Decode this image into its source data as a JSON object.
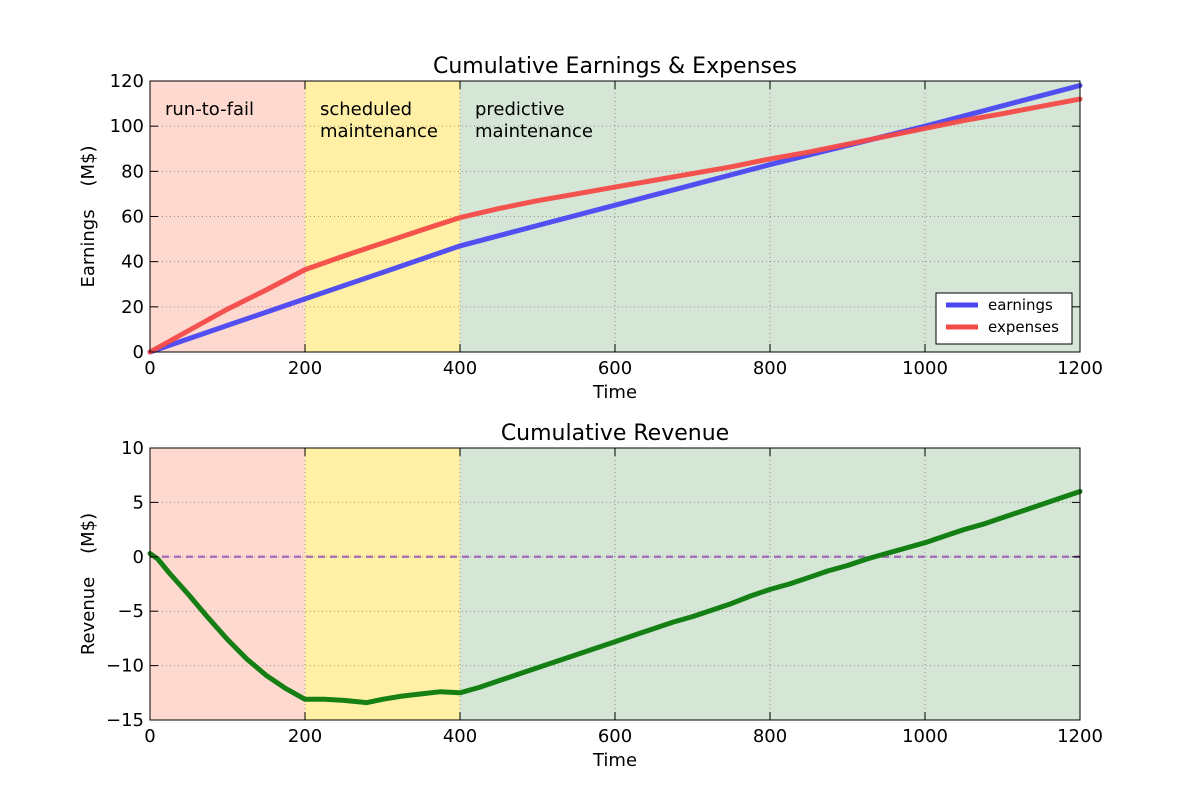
{
  "chart_data": [
    {
      "type": "line",
      "title": "Cumulative Earnings & Expenses",
      "xlabel": "Time",
      "ylabel": "Earnings    (M$)",
      "xlim": [
        0,
        1200
      ],
      "ylim": [
        0,
        120
      ],
      "xticks": [
        0,
        200,
        400,
        600,
        800,
        1000,
        1200
      ],
      "yticks": [
        0,
        20,
        40,
        60,
        80,
        100,
        120
      ],
      "grid": true,
      "legend": "lower-right",
      "regions": [
        {
          "label": "run-to-fail",
          "x0": 0,
          "x1": 200,
          "color": "#fdd9cf"
        },
        {
          "label": "scheduled\nmaintenance",
          "x0": 200,
          "x1": 400,
          "color": "#fff0a5"
        },
        {
          "label": "predictive\nmaintenance",
          "x0": 400,
          "x1": 1200,
          "color": "#d5e6d6"
        }
      ],
      "series": [
        {
          "name": "earnings",
          "color": "#4a47f3",
          "x": [
            0,
            100,
            200,
            300,
            400,
            500,
            600,
            700,
            800,
            900,
            1000,
            1100,
            1200
          ],
          "y": [
            0,
            11.8,
            23.5,
            35.2,
            47,
            56,
            65,
            74,
            83,
            91.5,
            100,
            109,
            118
          ]
        },
        {
          "name": "expenses",
          "color": "#f44a47",
          "x": [
            0,
            50,
            100,
            150,
            200,
            250,
            300,
            350,
            400,
            450,
            500,
            550,
            600,
            650,
            700,
            750,
            800,
            850,
            900,
            950,
            1000,
            1050,
            1100,
            1150,
            1200
          ],
          "y": [
            0,
            9.5,
            19,
            27.5,
            36.5,
            42.5,
            48.2,
            54,
            59.5,
            63.5,
            67,
            70,
            73,
            76,
            79,
            82,
            85.5,
            88.5,
            92,
            95.5,
            99,
            102.5,
            105.5,
            108.8,
            112
          ]
        }
      ]
    },
    {
      "type": "line",
      "title": "Cumulative Revenue",
      "xlabel": "Time",
      "ylabel": "Revenue    (M$)",
      "xlim": [
        0,
        1200
      ],
      "ylim": [
        -15,
        10
      ],
      "xticks": [
        0,
        200,
        400,
        600,
        800,
        1000,
        1200
      ],
      "yticks": [
        -15,
        -10,
        -5,
        0,
        5,
        10
      ],
      "grid": true,
      "reference_line": {
        "y": 0,
        "color": "#9b59b6",
        "style": "dashed"
      },
      "regions": [
        {
          "x0": 0,
          "x1": 200,
          "color": "#fdd9cf"
        },
        {
          "x0": 200,
          "x1": 400,
          "color": "#fff0a5"
        },
        {
          "x0": 400,
          "x1": 1200,
          "color": "#d5e6d6"
        }
      ],
      "series": [
        {
          "color": "#0a7a0a",
          "x": [
            0,
            10,
            25,
            50,
            75,
            100,
            125,
            150,
            175,
            200,
            225,
            250,
            280,
            300,
            325,
            350,
            375,
            400,
            425,
            450,
            475,
            500,
            525,
            550,
            575,
            600,
            625,
            650,
            675,
            700,
            725,
            750,
            775,
            800,
            825,
            850,
            875,
            900,
            925,
            950,
            975,
            1000,
            1025,
            1050,
            1075,
            1100,
            1125,
            1150,
            1175,
            1200
          ],
          "y": [
            0.3,
            -0.2,
            -1.5,
            -3.5,
            -5.6,
            -7.6,
            -9.4,
            -10.9,
            -12.1,
            -13.1,
            -13.1,
            -13.2,
            -13.4,
            -13.1,
            -12.8,
            -12.6,
            -12.4,
            -12.5,
            -12.0,
            -11.4,
            -10.8,
            -10.2,
            -9.6,
            -9.0,
            -8.4,
            -7.8,
            -7.2,
            -6.6,
            -6.0,
            -5.5,
            -4.9,
            -4.3,
            -3.6,
            -3.0,
            -2.5,
            -1.9,
            -1.3,
            -0.8,
            -0.2,
            0.3,
            0.8,
            1.3,
            1.9,
            2.5,
            3.0,
            3.6,
            4.2,
            4.8,
            5.4,
            6.0
          ]
        }
      ]
    }
  ]
}
